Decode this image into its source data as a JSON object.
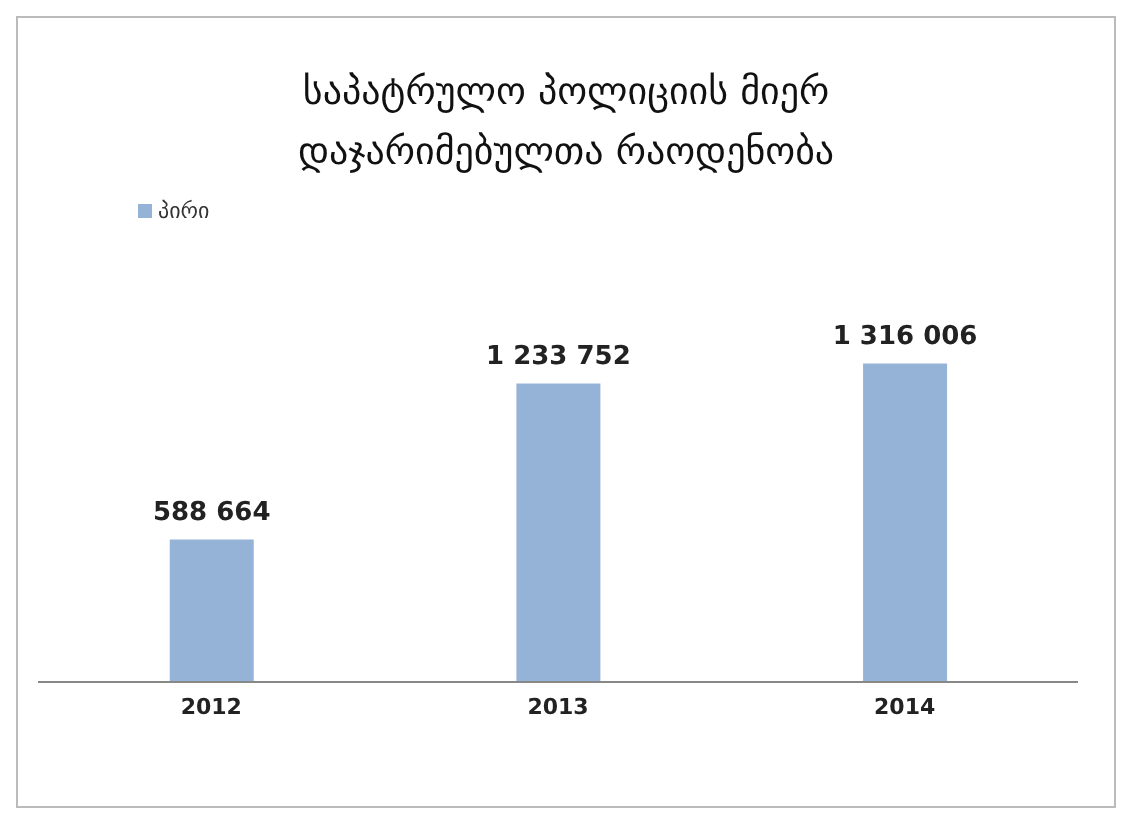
{
  "chart_data": {
    "type": "bar",
    "title": "საპატრულო პოლიციის მიერ დაჯარიმებულთა რაოდენობა",
    "categories": [
      "2012",
      "2013",
      "2014"
    ],
    "series": [
      {
        "name": "პირი",
        "color": "#95b3d7",
        "values": [
          588664,
          1233752,
          1316006
        ],
        "value_labels": [
          "588 664",
          "1 233 752",
          "1 316 006"
        ]
      }
    ],
    "legend": "top left",
    "grid": false
  }
}
